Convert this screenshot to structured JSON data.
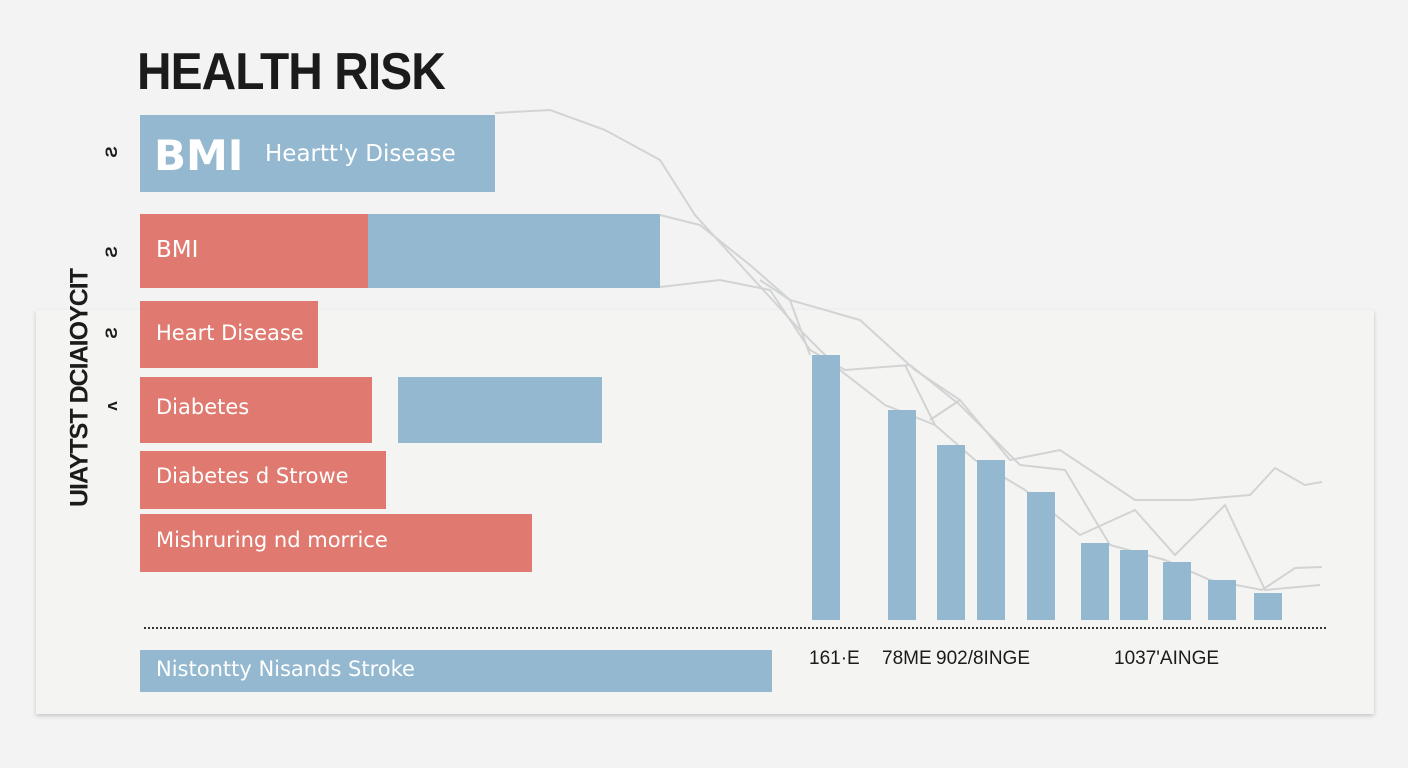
{
  "colors": {
    "blue": "#94b8cf",
    "red": "#e07a70",
    "line": "#d2d4d4",
    "text": "#1b1b1b"
  },
  "chart_data": {
    "type": "bar",
    "title": "HEALTH RISK",
    "ylabel": "UIAYTST DCIAIOYCIT",
    "y_ticks": [
      "Ƨ",
      "Ƨ",
      "Ƨ",
      "ʌ"
    ],
    "horizontal_bars": [
      {
        "label": "BMI",
        "label2": "Heartt'y Disease",
        "segments": [
          {
            "color": "blue",
            "value": 355
          }
        ]
      },
      {
        "label": "BMI",
        "segments": [
          {
            "color": "red",
            "value": 228
          },
          {
            "color": "blue",
            "value": 292
          }
        ]
      },
      {
        "label": "Heart Disease",
        "segments": [
          {
            "color": "red",
            "value": 178
          }
        ]
      },
      {
        "label": "Diabetes",
        "segments": [
          {
            "color": "red",
            "value": 232
          },
          {
            "color": "gap",
            "value": 26
          },
          {
            "color": "blue",
            "value": 204
          }
        ]
      },
      {
        "label": "Diabetes d Strowe",
        "segments": [
          {
            "color": "red",
            "value": 246
          }
        ]
      },
      {
        "label": "Mishruring nd morrice",
        "segments": [
          {
            "color": "red",
            "value": 392
          }
        ]
      },
      {
        "label": "Nistontty Nisands Stroke",
        "segments": [
          {
            "color": "blue",
            "value": 632
          }
        ]
      }
    ],
    "vertical_bars": [
      265,
      210,
      175,
      160,
      128,
      77,
      70,
      58,
      40,
      27
    ],
    "x_ticks": [
      "161·E",
      "78ME",
      "902/8INGE",
      "1037'AINGE"
    ]
  }
}
